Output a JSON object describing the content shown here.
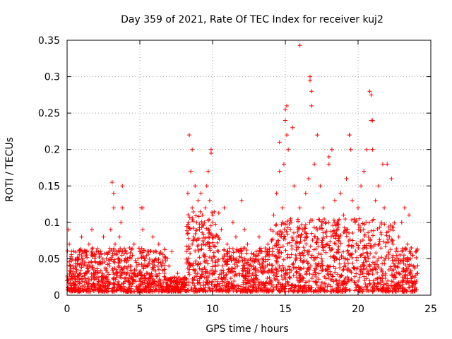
{
  "chart_data": {
    "type": "scatter",
    "title": "Day 359 of 2021, Rate Of TEC Index for receiver kuj2",
    "xlabel": "GPS time / hours",
    "ylabel": "ROTI / TECUs",
    "xlim": [
      0,
      25
    ],
    "ylim": [
      0,
      0.35
    ],
    "xticks": [
      0,
      5,
      10,
      15,
      20,
      25
    ],
    "xtick_labels": [
      "0",
      "5",
      "10",
      "15",
      "20",
      "25"
    ],
    "yticks": [
      0,
      0.05,
      0.1,
      0.15,
      0.2,
      0.25,
      0.3,
      0.35
    ],
    "ytick_labels": [
      "0",
      "0.05",
      "0.1",
      "0.15",
      "0.2",
      "0.25",
      "0.3",
      "0.35"
    ],
    "grid": true,
    "marker": "plus",
    "color": "#ff0000",
    "series": [
      {
        "name": "ROTI",
        "x": [
          0.05,
          0.1,
          0.15,
          0.2,
          0.3,
          0.4,
          0.6,
          0.8,
          1.0,
          1.2,
          1.4,
          1.5,
          1.7,
          1.9,
          2.1,
          2.3,
          2.5,
          2.7,
          2.9,
          3.0,
          3.1,
          3.2,
          3.3,
          3.5,
          3.6,
          3.7,
          3.8,
          4.0,
          4.2,
          4.4,
          4.6,
          4.8,
          5.0,
          5.1,
          5.2,
          5.3,
          5.5,
          5.7,
          5.9,
          6.1,
          6.3,
          6.5,
          6.7,
          6.9,
          7.0,
          7.2,
          7.4,
          7.6,
          7.8,
          8.0,
          8.2,
          8.3,
          8.4,
          8.5,
          8.6,
          8.7,
          8.8,
          8.9,
          9.0,
          9.1,
          9.2,
          9.3,
          9.4,
          9.5,
          9.6,
          9.7,
          9.8,
          9.9,
          10.0,
          10.2,
          10.4,
          10.6,
          10.8,
          11.0,
          11.2,
          11.4,
          11.6,
          11.8,
          12.0,
          12.2,
          12.4,
          12.6,
          12.8,
          13.0,
          13.2,
          13.4,
          13.6,
          13.8,
          14.0,
          14.2,
          14.4,
          14.6,
          14.8,
          14.9,
          15.0,
          15.1,
          15.2,
          15.4,
          15.6,
          15.8,
          16.0,
          16.2,
          16.4,
          16.6,
          16.7,
          16.8,
          17.0,
          17.2,
          17.4,
          17.6,
          17.8,
          18.0,
          18.2,
          18.4,
          18.6,
          18.8,
          19.0,
          19.2,
          19.4,
          19.5,
          19.6,
          19.8,
          20.0,
          20.2,
          20.4,
          20.6,
          20.8,
          20.9,
          21.0,
          21.2,
          21.4,
          21.6,
          21.8,
          22.0,
          22.2,
          22.4,
          22.6,
          22.8,
          23.0,
          23.2,
          23.4,
          23.6,
          23.8,
          24.0,
          24.1,
          16.0,
          16.7,
          16.8,
          15.0,
          15.1,
          20.9,
          21.0,
          9.9,
          8.6,
          3.2,
          3.8,
          5.2,
          18.0,
          19.4,
          15.5,
          14.6,
          21.7,
          22.3,
          23.5
        ],
        "y": [
          0.01,
          0.09,
          0.07,
          0.05,
          0.06,
          0.04,
          0.03,
          0.05,
          0.08,
          0.06,
          0.04,
          0.07,
          0.09,
          0.05,
          0.03,
          0.06,
          0.08,
          0.05,
          0.04,
          0.09,
          0.155,
          0.12,
          0.07,
          0.05,
          0.08,
          0.1,
          0.12,
          0.06,
          0.04,
          0.05,
          0.07,
          0.04,
          0.06,
          0.12,
          0.09,
          0.05,
          0.04,
          0.06,
          0.08,
          0.05,
          0.07,
          0.04,
          0.03,
          0.05,
          0.04,
          0.06,
          0.02,
          0.03,
          0.01,
          0.01,
          0.06,
          0.14,
          0.22,
          0.17,
          0.12,
          0.08,
          0.15,
          0.1,
          0.13,
          0.09,
          0.14,
          0.11,
          0.07,
          0.12,
          0.15,
          0.17,
          0.13,
          0.2,
          0.1,
          0.08,
          0.06,
          0.09,
          0.12,
          0.07,
          0.05,
          0.1,
          0.08,
          0.06,
          0.13,
          0.09,
          0.07,
          0.05,
          0.04,
          0.06,
          0.08,
          0.05,
          0.06,
          0.07,
          0.09,
          0.11,
          0.14,
          0.17,
          0.12,
          0.18,
          0.24,
          0.26,
          0.2,
          0.1,
          0.15,
          0.08,
          0.12,
          0.09,
          0.14,
          0.16,
          0.3,
          0.26,
          0.18,
          0.22,
          0.15,
          0.12,
          0.1,
          0.18,
          0.2,
          0.13,
          0.09,
          0.14,
          0.11,
          0.16,
          0.22,
          0.2,
          0.13,
          0.1,
          0.12,
          0.15,
          0.17,
          0.2,
          0.28,
          0.24,
          0.2,
          0.13,
          0.15,
          0.1,
          0.12,
          0.18,
          0.09,
          0.07,
          0.06,
          0.08,
          0.1,
          0.12,
          0.07,
          0.05,
          0.04,
          0.06,
          0.03,
          0.343,
          0.295,
          0.28,
          0.255,
          0.22,
          0.275,
          0.24,
          0.195,
          0.2,
          0.14,
          0.15,
          0.12,
          0.19,
          0.22,
          0.23,
          0.21,
          0.18,
          0.16,
          0.11
        ],
        "background_band": "dense points between 0.0 and ~0.07 across the full 0–24 h range"
      }
    ]
  }
}
